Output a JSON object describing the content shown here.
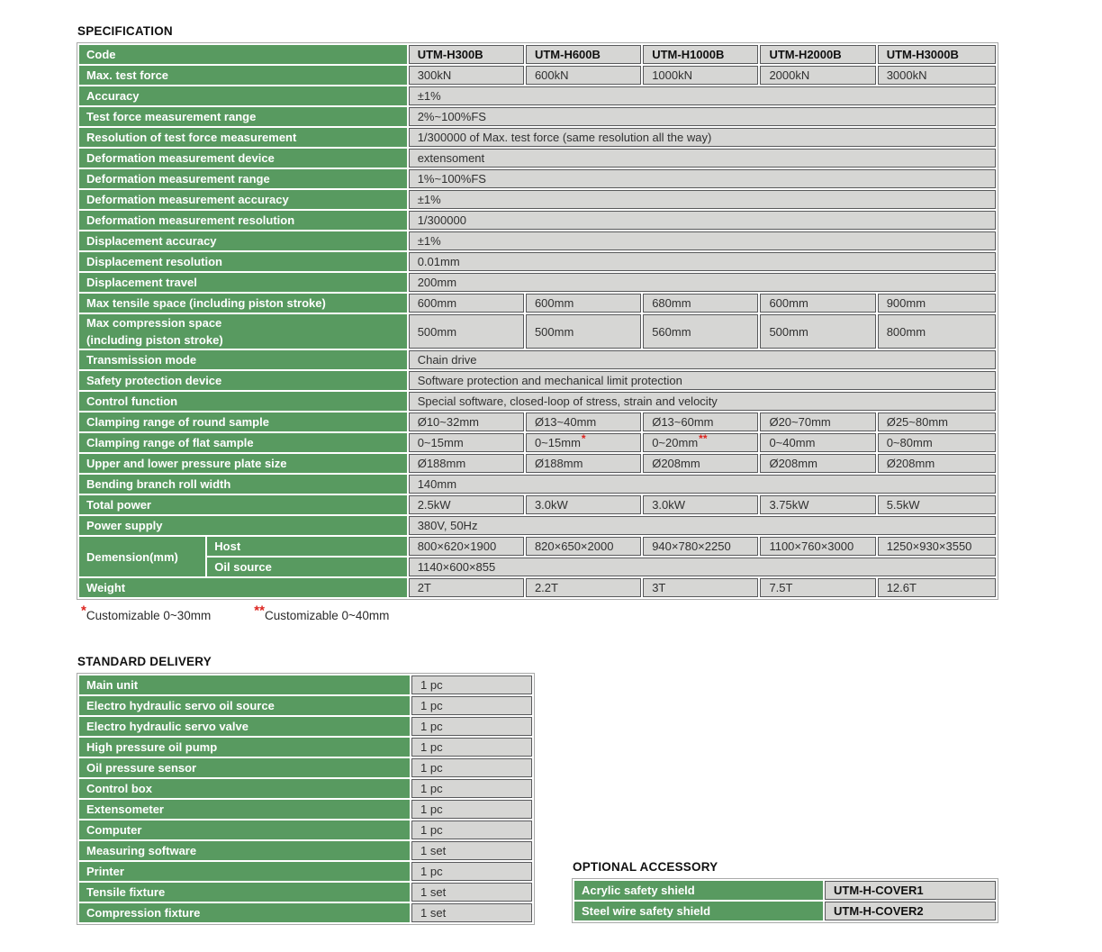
{
  "colors": {
    "header_green": "#589a60",
    "cell_gray": "#d6d6d4",
    "cell_border": "#58595b",
    "footnote_red": "#dd241f"
  },
  "specification": {
    "title": "SPECIFICATION",
    "rows": [
      {
        "label": "Code",
        "type": "header",
        "values": [
          "UTM-H300B",
          "UTM-H600B",
          "UTM-H1000B",
          "UTM-H2000B",
          "UTM-H3000B"
        ]
      },
      {
        "label": "Max. test force",
        "type": "cells",
        "values": [
          "300kN",
          "600kN",
          "1000kN",
          "2000kN",
          "3000kN"
        ]
      },
      {
        "label": "Accuracy",
        "type": "span",
        "value": "±1%"
      },
      {
        "label": "Test force measurement range",
        "type": "span",
        "value": "2%~100%FS"
      },
      {
        "label": "Resolution of test force measurement",
        "type": "span",
        "value": "1/300000 of Max. test force (same resolution all the way)"
      },
      {
        "label": "Deformation measurement device",
        "type": "span",
        "value": "extensoment"
      },
      {
        "label": "Deformation measurement range",
        "type": "span",
        "value": "1%~100%FS"
      },
      {
        "label": "Deformation measurement accuracy",
        "type": "span",
        "value": "±1%"
      },
      {
        "label": "Deformation measurement resolution",
        "type": "span",
        "value": "1/300000"
      },
      {
        "label": "Displacement accuracy",
        "type": "span",
        "value": "±1%"
      },
      {
        "label": "Displacement resolution",
        "type": "span",
        "value": "0.01mm"
      },
      {
        "label": "Displacement travel",
        "type": "span",
        "value": "200mm"
      },
      {
        "label": "Max tensile space (including piston stroke)",
        "type": "cells",
        "values": [
          "600mm",
          "600mm",
          "680mm",
          "600mm",
          "900mm"
        ]
      },
      {
        "label": "Max compression space",
        "label_line2": "(including piston stroke)",
        "type": "cells",
        "values": [
          "500mm",
          "500mm",
          "560mm",
          "500mm",
          "800mm"
        ]
      },
      {
        "label": "Transmission mode",
        "type": "span",
        "value": "Chain drive"
      },
      {
        "label": "Safety protection device",
        "type": "span",
        "value": "Software protection and mechanical limit protection"
      },
      {
        "label": "Control function",
        "type": "span",
        "value": "Special software, closed-loop of stress, strain and velocity"
      },
      {
        "label": "Clamping range of round sample",
        "type": "cells",
        "values": [
          "Ø10~32mm",
          "Ø13~40mm",
          "Ø13~60mm",
          "Ø20~70mm",
          "Ø25~80mm"
        ]
      },
      {
        "label": "Clamping range of flat sample",
        "type": "cells",
        "values": [
          "0~15mm",
          "0~15mm",
          "0~20mm",
          "0~40mm",
          "0~80mm"
        ],
        "marks": [
          "",
          "*",
          "**",
          "",
          ""
        ]
      },
      {
        "label": "Upper and lower pressure plate size",
        "type": "cells",
        "values": [
          "Ø188mm",
          "Ø188mm",
          "Ø208mm",
          "Ø208mm",
          "Ø208mm"
        ]
      },
      {
        "label": "Bending branch roll width",
        "type": "span",
        "value": "140mm"
      },
      {
        "label": "Total power",
        "type": "cells",
        "values": [
          "2.5kW",
          "3.0kW",
          "3.0kW",
          "3.75kW",
          "5.5kW"
        ]
      },
      {
        "label": "Power supply",
        "type": "span",
        "value": "380V, 50Hz"
      },
      {
        "label": "Demension(mm)",
        "type": "group",
        "subrows": [
          {
            "sublabel": "Host",
            "type": "cells",
            "values": [
              "800×620×1900",
              "820×650×2000",
              "940×780×2250",
              "1100×760×3000",
              "1250×930×3550"
            ]
          },
          {
            "sublabel": "Oil source",
            "type": "span",
            "value": "1140×600×855"
          }
        ]
      },
      {
        "label": "Weight",
        "type": "cells",
        "values": [
          "2T",
          "2.2T",
          "3T",
          "7.5T",
          "12.6T"
        ]
      }
    ],
    "footnotes": [
      {
        "mark": "*",
        "text": "Customizable 0~30mm"
      },
      {
        "mark": "**",
        "text": "Customizable 0~40mm"
      }
    ]
  },
  "standard_delivery": {
    "title": "STANDARD DELIVERY",
    "items": [
      {
        "label": "Main unit",
        "qty": "1 pc"
      },
      {
        "label": "Electro hydraulic servo oil source",
        "qty": "1 pc"
      },
      {
        "label": "Electro hydraulic servo valve",
        "qty": "1 pc"
      },
      {
        "label": "High pressure oil pump",
        "qty": "1 pc"
      },
      {
        "label": "Oil pressure sensor",
        "qty": "1 pc"
      },
      {
        "label": "Control box",
        "qty": "1 pc"
      },
      {
        "label": "Extensometer",
        "qty": "1 pc"
      },
      {
        "label": "Computer",
        "qty": "1 pc"
      },
      {
        "label": "Measuring software",
        "qty": "1 set"
      },
      {
        "label": "Printer",
        "qty": "1 pc"
      },
      {
        "label": "Tensile fixture",
        "qty": "1 set"
      },
      {
        "label": "Compression fixture",
        "qty": "1 set"
      }
    ]
  },
  "optional_accessory": {
    "title": "OPTIONAL ACCESSORY",
    "items": [
      {
        "label": "Acrylic safety shield",
        "code": "UTM-H-COVER1"
      },
      {
        "label": "Steel wire safety shield",
        "code": "UTM-H-COVER2"
      }
    ]
  }
}
